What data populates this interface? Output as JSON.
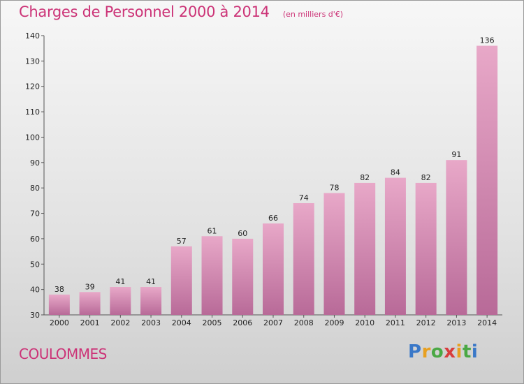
{
  "title": "Charges de Personnel 2000 à 2014",
  "subtitle": "(en milliers d'€)",
  "commune": "COULOMMES",
  "brand": {
    "letters": [
      "P",
      "r",
      "o",
      "x",
      "i",
      "t",
      "i"
    ],
    "colors": [
      "#3a78c8",
      "#e8a020",
      "#4aa844",
      "#d83c3c",
      "#e8a020",
      "#4aa844",
      "#3a78c8"
    ]
  },
  "colors": {
    "accent": "#cc3377",
    "bar_top": "#e8a8c8",
    "bar_bottom": "#b86a98"
  },
  "chart_data": {
    "type": "bar",
    "categories": [
      "2000",
      "2001",
      "2002",
      "2003",
      "2004",
      "2005",
      "2006",
      "2007",
      "2008",
      "2009",
      "2010",
      "2011",
      "2012",
      "2013",
      "2014"
    ],
    "values": [
      38,
      39,
      41,
      41,
      57,
      61,
      60,
      66,
      74,
      78,
      82,
      84,
      82,
      91,
      136
    ],
    "ylim": [
      30,
      140
    ],
    "yticks": [
      30,
      40,
      50,
      60,
      70,
      80,
      90,
      100,
      110,
      120,
      130,
      140
    ],
    "title": "Charges de Personnel 2000 à 2014",
    "subtitle": "(en milliers d'€)",
    "xlabel": "",
    "ylabel": "",
    "grid": false,
    "legend": "none"
  }
}
